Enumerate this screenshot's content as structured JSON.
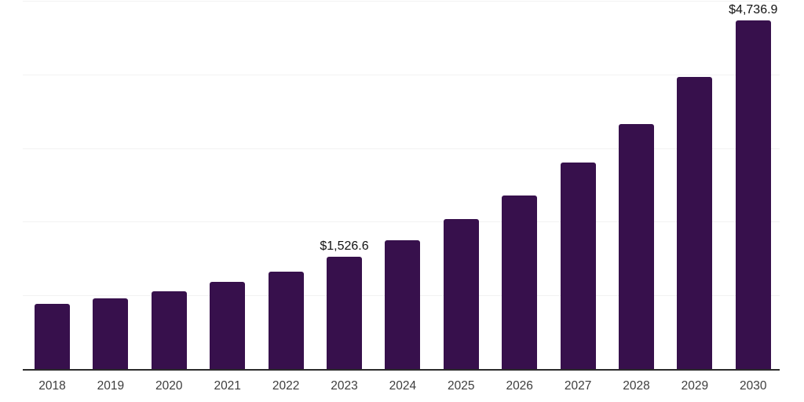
{
  "chart_data": {
    "type": "bar",
    "title": "",
    "xlabel": "",
    "ylabel": "",
    "categories": [
      "2018",
      "2019",
      "2020",
      "2021",
      "2022",
      "2023",
      "2024",
      "2025",
      "2026",
      "2027",
      "2028",
      "2029",
      "2030"
    ],
    "values": [
      880,
      955,
      1055,
      1185,
      1325,
      1526.6,
      1750,
      2035,
      2360,
      2805,
      3330,
      3965,
      4736.9
    ],
    "data_labels": {
      "2023": "$1,526.6",
      "2030": "$4,736.9"
    },
    "ylim": [
      0,
      5000
    ],
    "gridline_step": 1000,
    "grid": true,
    "legend": false,
    "colors": {
      "bar": "#37104c",
      "axis_line": "#2b2b2b",
      "gridline": "#f2f2f2",
      "data_label": "#111111",
      "tick_label": "#3d3d3d",
      "background": "#ffffff"
    }
  }
}
